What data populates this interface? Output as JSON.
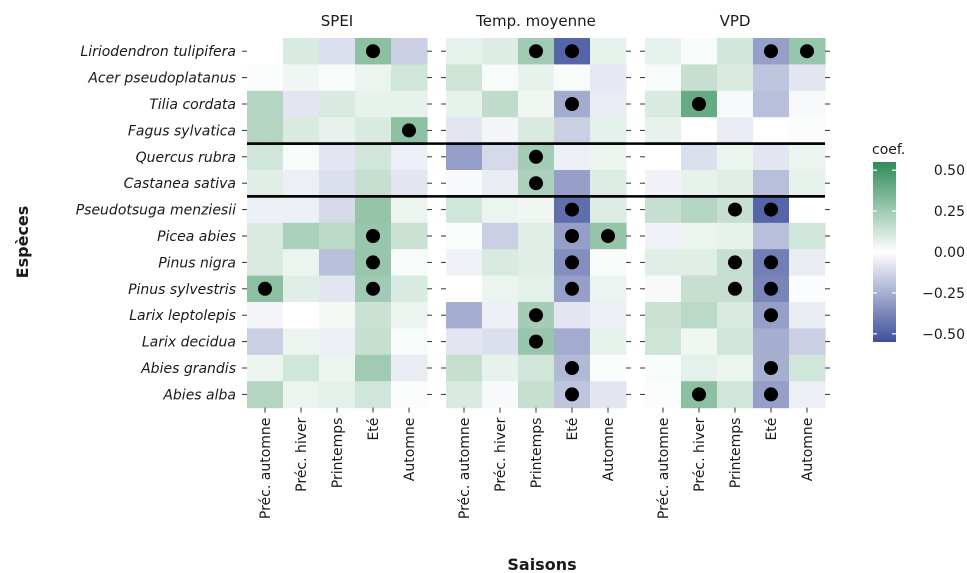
{
  "chart_data": {
    "type": "heatmap",
    "xlabel": "Saisons",
    "ylabel": "Espèces",
    "facets": [
      "SPEI",
      "Temp. moyenne",
      "VPD"
    ],
    "seasons": [
      "Préc. automne",
      "Préc. hiver",
      "Printemps",
      "Eté",
      "Automne"
    ],
    "species": [
      "Liriodendron tulipifera",
      "Acer pseudoplatanus",
      "Tilia cordata",
      "Fagus sylvatica",
      "Quercus rubra",
      "Castanea sativa",
      "Pseudotsuga menziesii",
      "Picea abies",
      "Pinus nigra",
      "Pinus sylvestris",
      "Larix leptolepis",
      "Larix decidua",
      "Abies grandis",
      "Abies alba"
    ],
    "group_separators_after": [
      3,
      5
    ],
    "legend": {
      "title": "coef.",
      "ticks": [
        0.5,
        0.25,
        0.0,
        -0.25,
        -0.5
      ],
      "tick_labels": [
        "0.50",
        "0.25",
        "0.00",
        "−0.25",
        "−0.50"
      ],
      "range": [
        -0.55,
        0.55
      ]
    },
    "colors": {
      "low": "#3d4f9a",
      "mid": "#ffffff",
      "high": "#2e8b57"
    },
    "values": {
      "SPEI": [
        [
          0.0,
          0.1,
          -0.1,
          0.3,
          -0.15
        ],
        [
          0.01,
          0.04,
          0.02,
          0.05,
          0.12
        ],
        [
          0.2,
          -0.08,
          0.1,
          0.06,
          0.06
        ],
        [
          0.2,
          0.1,
          0.06,
          0.1,
          0.3
        ],
        [
          0.12,
          0.02,
          -0.08,
          0.12,
          -0.05
        ],
        [
          0.08,
          -0.05,
          -0.1,
          0.15,
          -0.08
        ],
        [
          -0.05,
          -0.05,
          -0.12,
          0.28,
          0.05
        ],
        [
          0.1,
          0.22,
          0.18,
          0.27,
          0.14
        ],
        [
          0.1,
          0.05,
          -0.2,
          0.27,
          0.02
        ],
        [
          0.3,
          0.08,
          -0.08,
          0.25,
          0.1
        ],
        [
          -0.03,
          0.0,
          0.03,
          0.14,
          0.05
        ],
        [
          -0.15,
          0.05,
          -0.05,
          0.15,
          0.02
        ],
        [
          0.05,
          0.12,
          0.05,
          0.25,
          -0.06
        ],
        [
          0.2,
          0.05,
          0.07,
          0.12,
          0.01
        ]
      ],
      "Temp. moyenne": [
        [
          0.06,
          0.09,
          0.25,
          -0.48,
          0.06
        ],
        [
          0.13,
          0.02,
          0.06,
          0.02,
          -0.07
        ],
        [
          0.06,
          0.17,
          0.04,
          -0.26,
          -0.06
        ],
        [
          -0.08,
          -0.03,
          0.1,
          -0.15,
          0.07
        ],
        [
          -0.3,
          -0.12,
          0.24,
          -0.05,
          0.05
        ],
        [
          -0.02,
          -0.06,
          0.22,
          -0.3,
          0.09
        ],
        [
          0.12,
          0.05,
          0.04,
          -0.45,
          0.09
        ],
        [
          0.01,
          -0.15,
          0.08,
          -0.3,
          0.28
        ],
        [
          -0.04,
          0.1,
          0.08,
          -0.35,
          0.02
        ],
        [
          0.0,
          0.05,
          0.07,
          -0.3,
          0.05
        ],
        [
          -0.25,
          -0.05,
          0.24,
          -0.08,
          -0.05
        ],
        [
          -0.08,
          -0.1,
          0.27,
          -0.26,
          0.06
        ],
        [
          0.15,
          0.06,
          0.12,
          -0.22,
          0.01
        ],
        [
          0.1,
          -0.02,
          0.15,
          -0.18,
          -0.08
        ]
      ],
      "VPD": [
        [
          0.06,
          0.02,
          0.12,
          -0.3,
          0.27
        ],
        [
          0.02,
          0.15,
          0.1,
          -0.18,
          -0.08
        ],
        [
          0.1,
          0.4,
          -0.02,
          -0.2,
          -0.02
        ],
        [
          0.06,
          0.0,
          -0.06,
          0.0,
          0.01
        ],
        [
          0.0,
          -0.1,
          0.05,
          -0.08,
          0.05
        ],
        [
          -0.04,
          0.06,
          0.08,
          -0.2,
          0.06
        ],
        [
          0.15,
          0.2,
          0.15,
          -0.48,
          0.0
        ],
        [
          -0.04,
          0.05,
          0.06,
          -0.2,
          0.12
        ],
        [
          0.08,
          0.08,
          0.15,
          -0.4,
          -0.06
        ],
        [
          -0.02,
          0.15,
          0.15,
          -0.38,
          -0.01
        ],
        [
          0.14,
          0.18,
          0.1,
          -0.3,
          -0.06
        ],
        [
          0.13,
          0.04,
          0.12,
          -0.25,
          -0.15
        ],
        [
          0.02,
          0.07,
          0.05,
          -0.25,
          0.12
        ],
        [
          0.01,
          0.3,
          0.12,
          -0.3,
          -0.05
        ]
      ]
    },
    "significant": {
      "SPEI": [
        [
          0,
          3
        ],
        [
          3,
          4
        ],
        [
          7,
          3
        ],
        [
          8,
          3
        ],
        [
          9,
          0
        ],
        [
          9,
          3
        ]
      ],
      "Temp. moyenne": [
        [
          0,
          2
        ],
        [
          0,
          3
        ],
        [
          2,
          3
        ],
        [
          4,
          2
        ],
        [
          5,
          2
        ],
        [
          6,
          3
        ],
        [
          7,
          3
        ],
        [
          7,
          4
        ],
        [
          8,
          3
        ],
        [
          9,
          3
        ],
        [
          10,
          2
        ],
        [
          11,
          2
        ],
        [
          12,
          3
        ],
        [
          13,
          3
        ]
      ],
      "VPD": [
        [
          0,
          3
        ],
        [
          0,
          4
        ],
        [
          2,
          1
        ],
        [
          6,
          2
        ],
        [
          6,
          3
        ],
        [
          8,
          2
        ],
        [
          8,
          3
        ],
        [
          9,
          2
        ],
        [
          9,
          3
        ],
        [
          10,
          3
        ],
        [
          12,
          3
        ],
        [
          13,
          1
        ],
        [
          13,
          3
        ]
      ]
    }
  }
}
